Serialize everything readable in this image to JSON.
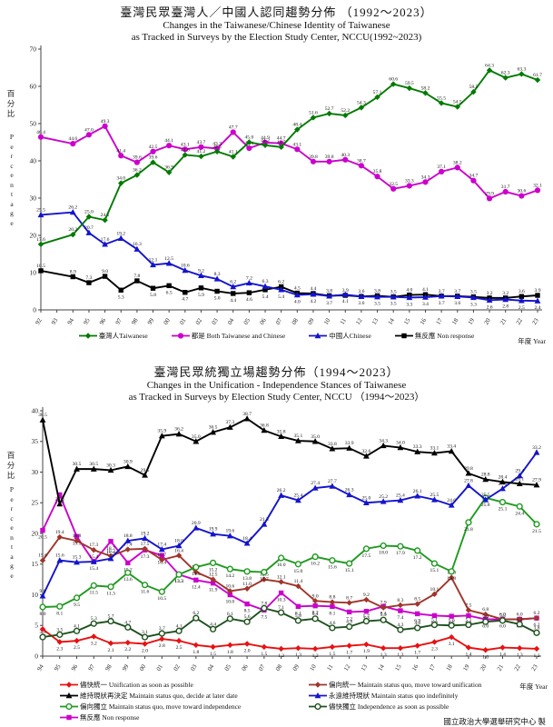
{
  "footer": {
    "credit": "國立政治大學選舉研究中心 製"
  },
  "chart_data": [
    {
      "type": "line",
      "title_zh": "臺灣民眾臺灣人／中國人認同趨勢分佈 （1992～2023）",
      "title_en1": "Changes in the Taiwanese/Chinese Identity of Taiwanese",
      "title_en2": "as Tracked in Surveys by the Election Study Center, NCCU(1992~2023)",
      "ylabel_zh": "百分比",
      "ylabel_en": "Percentage",
      "xlabel": "年度 Year",
      "ylim": [
        0,
        70
      ],
      "ystep": 10,
      "grid": false,
      "legend_position": "bottom",
      "categories": [
        "92",
        "93",
        "94",
        "95",
        "96",
        "97",
        "98",
        "99",
        "00",
        "01",
        "02",
        "03",
        "04",
        "05",
        "06",
        "07",
        "08",
        "09",
        "10",
        "11",
        "12",
        "13",
        "14",
        "15",
        "16",
        "17",
        "18",
        "19",
        "20",
        "21",
        "22",
        "23"
      ],
      "draw_order": [
        3,
        2,
        1,
        0
      ],
      "series": [
        {
          "key": "taiwanese",
          "label": "臺灣人Taiwanese",
          "color": "#007A00",
          "marker": "diamond",
          "labelpos": "above",
          "values": [
            17.6,
            null,
            20.2,
            25.0,
            24.1,
            34.0,
            36.2,
            39.6,
            36.9,
            41.6,
            41.2,
            42.5,
            41.1,
            45.0,
            44.2,
            43.7,
            48.4,
            51.6,
            52.7,
            52.2,
            54.3,
            57.1,
            60.6,
            59.5,
            58.2,
            55.5,
            54.5,
            58.5,
            64.3,
            62.3,
            63.3,
            61.7
          ]
        },
        {
          "key": "both",
          "label": "都是 Both Taiwanese and Chinese",
          "color": "#CC00CC",
          "marker": "circle",
          "labelpos": "above",
          "values": [
            46.4,
            null,
            44.6,
            47.0,
            49.3,
            41.4,
            39.6,
            42.5,
            44.1,
            43.1,
            43.7,
            43.3,
            47.7,
            43.4,
            44.9,
            44.7,
            43.1,
            39.8,
            39.8,
            40.3,
            38.7,
            35.8,
            32.5,
            33.3,
            34.3,
            37.1,
            38.2,
            34.7,
            29.9,
            31.7,
            30.6,
            32.1
          ]
        },
        {
          "key": "chinese",
          "label": "中國人Chinese",
          "color": "#1414CC",
          "marker": "triangle",
          "labelpos": "blue1",
          "values": [
            25.5,
            null,
            26.2,
            20.7,
            17.6,
            19.2,
            16.3,
            12.1,
            12.5,
            10.6,
            9.2,
            8.3,
            6.2,
            7.2,
            6.3,
            5.4,
            4.0,
            4.2,
            3.7,
            4.1,
            3.6,
            3.5,
            3.5,
            3.3,
            3.4,
            3.7,
            3.6,
            3.3,
            2.6,
            2.8,
            2.5,
            2.4
          ]
        },
        {
          "key": "nonresponse",
          "label": "無反應 Non response",
          "color": "#000000",
          "marker": "square",
          "labelpos": "black1",
          "values": [
            10.5,
            null,
            8.9,
            7.3,
            9.0,
            5.3,
            7.8,
            5.8,
            6.5,
            4.7,
            5.9,
            5.0,
            4.4,
            4.6,
            5.4,
            6.2,
            4.5,
            4.4,
            3.8,
            3.9,
            3.6,
            3.8,
            3.5,
            4.0,
            4.1,
            3.7,
            3.7,
            3.5,
            3.2,
            3.2,
            3.6,
            3.9
          ]
        }
      ]
    },
    {
      "type": "line",
      "title_zh": "臺灣民眾統獨立場趨勢分佈（1994～2023）",
      "title_en1": "Changes in the Unification - Independence Stances of Taiwanese",
      "title_en2": "as Tracked in Surveys by Election Study Center, NCCU （1994～2023）",
      "ylabel_zh": "百分比",
      "ylabel_en": "Percentage",
      "xlabel": "年度 Year",
      "ylim": [
        0,
        40
      ],
      "ystep": 5,
      "grid": false,
      "legend_position": "bottom-two-column",
      "categories": [
        "94",
        "95",
        "96",
        "97",
        "98",
        "99",
        "00",
        "01",
        "02",
        "03",
        "04",
        "05",
        "06",
        "07",
        "08",
        "09",
        "10",
        "11",
        "12",
        "13",
        "14",
        "15",
        "16",
        "17",
        "18",
        "19",
        "20",
        "21",
        "22",
        "23"
      ],
      "draw_order": [
        6,
        1,
        0,
        5,
        4,
        3,
        2
      ],
      "series": [
        {
          "key": "unification-asap",
          "label": "儘快統一 Unification as soon as possible",
          "color": "#E81111",
          "marker": "diamond",
          "labelpos": "below",
          "values": [
            4.4,
            2.3,
            2.5,
            3.2,
            2.1,
            2.2,
            2.0,
            2.8,
            2.5,
            1.8,
            1.5,
            1.8,
            2.0,
            1.5,
            1.2,
            1.3,
            1.2,
            1.5,
            1.7,
            1.9,
            1.3,
            1.3,
            1.7,
            2.3,
            3.1,
            1.4,
            1.0,
            1.4,
            1.3,
            1.2
          ]
        },
        {
          "key": "lean-unification",
          "label": "偏向統一 Maintain status quo, move toward unification",
          "color": "#A0352B",
          "marker": "diamond",
          "labelpos": "above",
          "values": [
            15.6,
            19.4,
            18.8,
            17.3,
            16.3,
            17.4,
            17.5,
            15.7,
            16.4,
            13.7,
            12.5,
            10.6,
            11.0,
            12.5,
            12.1,
            11.4,
            9.0,
            8.8,
            8.7,
            9.2,
            7.9,
            8.3,
            8.5,
            10.1,
            12.8,
            7.5,
            6.8,
            6.0,
            6.0,
            6.2
          ]
        },
        {
          "key": "status-quo-decide-later",
          "label": "維持現狀再決定 Maintain status quo, decide at later date",
          "color": "#000000",
          "marker": "triangle",
          "labelpos": "above",
          "values": [
            38.5,
            24.8,
            30.5,
            30.5,
            30.3,
            30.9,
            29.5,
            35.9,
            36.2,
            35.0,
            36.5,
            37.3,
            38.7,
            36.8,
            35.8,
            35.1,
            35.0,
            33.8,
            33.9,
            32.6,
            34.3,
            34.0,
            33.3,
            33.1,
            33.4,
            29.8,
            28.8,
            28.4,
            28.1,
            27.9
          ]
        },
        {
          "key": "status-quo-indefinitely",
          "label": "永遠維持現狀 Maintain status quo indefinitely",
          "color": "#1414CC",
          "marker": "triangle",
          "labelpos": "above",
          "values": [
            9.8,
            15.6,
            15.3,
            15.4,
            15.9,
            18.8,
            19.2,
            17.4,
            18.0,
            20.9,
            19.9,
            19.6,
            18.4,
            21.5,
            26.2,
            25.4,
            27.4,
            27.7,
            26.3,
            25.0,
            25.2,
            25.4,
            26.1,
            25.5,
            24.6,
            27.8,
            25.5,
            27.3,
            29.4,
            33.2
          ]
        },
        {
          "key": "lean-independence",
          "label": "偏向獨立 Maintain status quo, move toward independence",
          "color": "#1F9A1F",
          "marker": "circle-open",
          "labelpos": "below",
          "values": [
            8.0,
            8.1,
            9.5,
            11.5,
            11.3,
            13.6,
            11.6,
            10.5,
            13.3,
            14.5,
            15.2,
            14.2,
            13.8,
            13.7,
            16.0,
            15.0,
            16.2,
            15.6,
            15.1,
            17.5,
            18.0,
            17.9,
            17.2,
            15.1,
            13.8,
            21.8,
            25.8,
            25.1,
            24.4,
            21.5
          ]
        },
        {
          "key": "independence-asap",
          "label": "儘快獨立 Independence as soon as possible",
          "color": "#1E511E",
          "marker": "circle-open",
          "labelpos": "above",
          "values": [
            3.1,
            3.5,
            4.1,
            5.3,
            5.7,
            4.7,
            3.1,
            3.7,
            4.1,
            6.2,
            4.4,
            6.1,
            5.6,
            7.8,
            7.1,
            5.8,
            6.1,
            4.6,
            4.8,
            5.7,
            5.9,
            4.3,
            4.6,
            5.1,
            5.0,
            5.1,
            5.6,
            5.8,
            5.2,
            3.8
          ]
        },
        {
          "key": "non-response",
          "label": "無反應 Non response",
          "color": "#CC00CC",
          "marker": "square",
          "labelpos": "below",
          "values": [
            20.5,
            26.3,
            19.5,
            15.4,
            18.7,
            15.2,
            17.3,
            16.4,
            13.3,
            12.4,
            11.9,
            10.0,
            8.5,
            7.5,
            10.3,
            8.1,
            8.2,
            8.1,
            7.2,
            7.3,
            8.1,
            7.4,
            6.9,
            6.6,
            6.5,
            6.6,
            6.0,
            6.0,
            6.0,
            6.2
          ]
        }
      ]
    }
  ]
}
